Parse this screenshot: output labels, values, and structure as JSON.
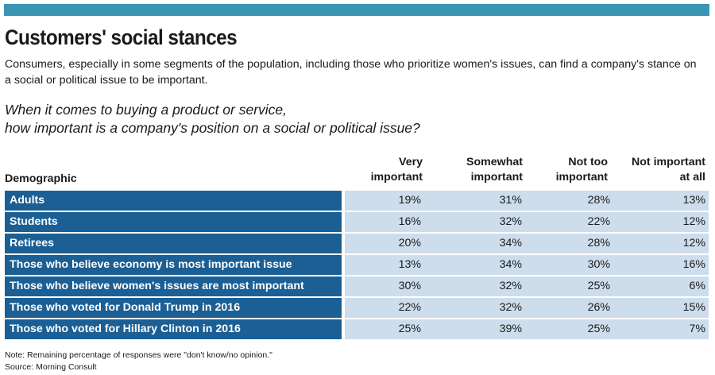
{
  "header": {
    "title": "Customers' social stances",
    "subtitle": "Consumers, especially in some segments of the population, including those who prioritize women's issues, can find a company's stance on a social or political issue to be important.",
    "question_line1": "When it comes to buying a product or service,",
    "question_line2": "how important is a company's position on a social or political issue?"
  },
  "chart_data": {
    "type": "table",
    "row_header": "Demographic",
    "columns": [
      {
        "line1": "Very",
        "line2": "important"
      },
      {
        "line1": "Somewhat",
        "line2": "important"
      },
      {
        "line1": "Not too",
        "line2": "important"
      },
      {
        "line1": "Not important",
        "line2": "at all"
      }
    ],
    "rows": [
      {
        "label": "Adults",
        "values": [
          "19%",
          "31%",
          "28%",
          "13%"
        ]
      },
      {
        "label": "Students",
        "values": [
          "16%",
          "32%",
          "22%",
          "12%"
        ]
      },
      {
        "label": "Retirees",
        "values": [
          "20%",
          "34%",
          "28%",
          "12%"
        ]
      },
      {
        "label": "Those who believe economy is most important issue",
        "values": [
          "13%",
          "34%",
          "30%",
          "16%"
        ]
      },
      {
        "label": "Those who believe women's issues are most important",
        "values": [
          "30%",
          "32%",
          "25%",
          "6%"
        ]
      },
      {
        "label": "Those who voted for Donald Trump in 2016",
        "values": [
          "22%",
          "32%",
          "26%",
          "15%"
        ]
      },
      {
        "label": "Those who voted for Hillary Clinton in 2016",
        "values": [
          "25%",
          "39%",
          "25%",
          "7%"
        ]
      }
    ]
  },
  "footer": {
    "note": "Note: Remaining percentage of responses were \"don't know/no opinion.\"",
    "source": "Source: Morning Consult"
  },
  "colors": {
    "top_bar": "#3a95b5",
    "label_fill": "#1b5f94",
    "value_fill": "#cdddec"
  }
}
